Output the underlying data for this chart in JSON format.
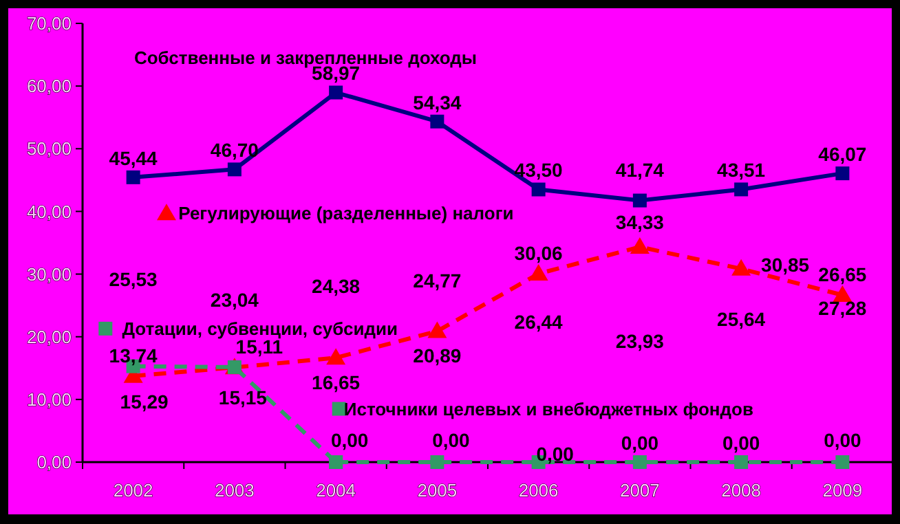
{
  "chart_data": {
    "type": "line",
    "categories": [
      "2002",
      "2003",
      "2004",
      "2005",
      "2006",
      "2007",
      "2008",
      "2009"
    ],
    "ylim": [
      0,
      70
    ],
    "yticks": [
      {
        "value": 0,
        "label": "0,00"
      },
      {
        "value": 10,
        "label": "10,00"
      },
      {
        "value": 20,
        "label": "20,00"
      },
      {
        "value": 30,
        "label": "30,00"
      },
      {
        "value": 40,
        "label": "40,00"
      },
      {
        "value": 50,
        "label": "50,00"
      },
      {
        "value": 60,
        "label": "60,00"
      },
      {
        "value": 70,
        "label": "70,00"
      }
    ],
    "series": [
      {
        "name": "Собственные и закрепленные доходы",
        "color": "#000080",
        "marker": "square",
        "line_style": "solid",
        "values": [
          45.44,
          46.7,
          58.97,
          54.34,
          43.5,
          41.74,
          43.51,
          46.07
        ],
        "value_labels": [
          "45,44",
          "46,70",
          "58,97",
          "54,34",
          "43,50",
          "41,74",
          "43,51",
          "46,07"
        ]
      },
      {
        "name": "Регулирующие (разделенные) налоги",
        "color": "#ff0000",
        "marker": "triangle",
        "line_style": "dashed",
        "values": [
          13.74,
          15.11,
          16.65,
          20.89,
          30.06,
          34.33,
          30.85,
          26.65
        ],
        "value_labels": [
          "13,74",
          "15,11",
          "16,65",
          "20,89",
          "30,06",
          "34,33",
          "30,85",
          "26,65"
        ]
      },
      {
        "name": "Дотации, субвенции, субсидии",
        "color": "#339966",
        "marker": "square",
        "line_style": "dashed",
        "values": [
          15.29,
          15.15,
          0,
          null,
          null,
          null,
          null,
          null
        ],
        "value_labels": [
          "15,29",
          "15,15",
          null,
          null,
          null,
          null,
          null,
          null
        ]
      },
      {
        "name": "Источники целевых и внебюджетных фондов",
        "color": "#339966",
        "marker": "square",
        "line_style": "dashed",
        "values": [
          null,
          null,
          0,
          0,
          0,
          0,
          0,
          0
        ],
        "value_labels": [
          null,
          null,
          "0,00",
          "0,00",
          "0,00",
          "0,00",
          "0,00",
          "0,00"
        ]
      }
    ],
    "legend": "left",
    "annotations": [
      "25,53",
      "23,04",
      "24,38",
      "24,77",
      "26,44",
      "23,93",
      "25,64",
      "27,28"
    ]
  }
}
